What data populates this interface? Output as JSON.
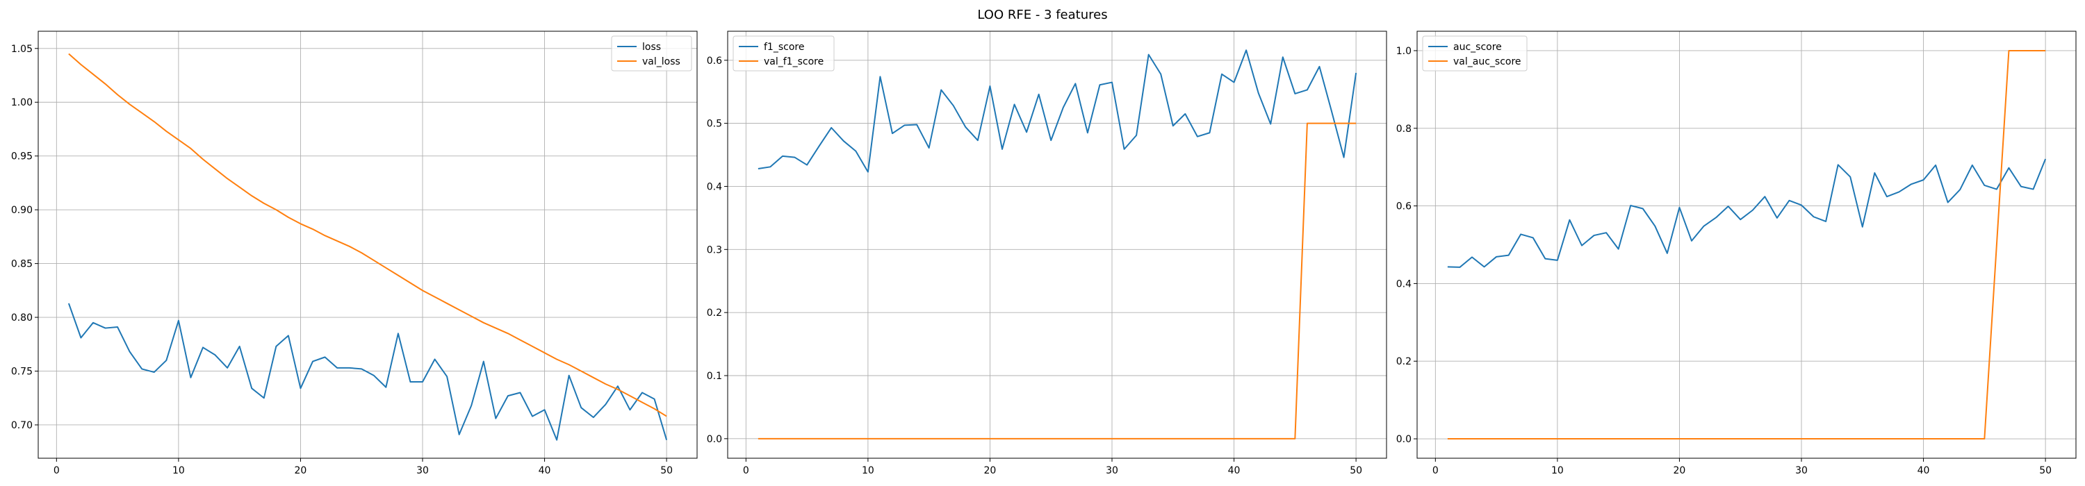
{
  "figure": {
    "title": "LOO RFE - 3 features"
  },
  "chart_data": [
    {
      "type": "line",
      "title": "",
      "xlabel": "",
      "ylabel": "",
      "xlim": [
        -1.5,
        52.5
      ],
      "ylim": [
        0.669,
        1.066
      ],
      "xticks": [
        0,
        10,
        20,
        30,
        40,
        50
      ],
      "yticks": [
        0.7,
        0.75,
        0.8,
        0.85,
        0.9,
        0.95,
        1.0,
        1.05
      ],
      "ytick_labels": [
        "0.70",
        "0.75",
        "0.80",
        "0.85",
        "0.90",
        "0.95",
        "1.00",
        "1.05"
      ],
      "grid": true,
      "legend": "top-right",
      "x": [
        1,
        2,
        3,
        4,
        5,
        6,
        7,
        8,
        9,
        10,
        11,
        12,
        13,
        14,
        15,
        16,
        17,
        18,
        19,
        20,
        21,
        22,
        23,
        24,
        25,
        26,
        27,
        28,
        29,
        30,
        31,
        32,
        33,
        34,
        35,
        36,
        37,
        38,
        39,
        40,
        41,
        42,
        43,
        44,
        45,
        46,
        47,
        48,
        49,
        50
      ],
      "series": [
        {
          "name": "loss",
          "color": "#1f77b4",
          "values": [
            0.813,
            0.781,
            0.795,
            0.79,
            0.791,
            0.768,
            0.752,
            0.749,
            0.76,
            0.797,
            0.744,
            0.772,
            0.765,
            0.753,
            0.773,
            0.734,
            0.725,
            0.773,
            0.783,
            0.734,
            0.759,
            0.763,
            0.753,
            0.753,
            0.752,
            0.746,
            0.735,
            0.785,
            0.74,
            0.74,
            0.761,
            0.745,
            0.691,
            0.718,
            0.759,
            0.706,
            0.727,
            0.73,
            0.708,
            0.714,
            0.686,
            0.746,
            0.716,
            0.707,
            0.719,
            0.736,
            0.714,
            0.73,
            0.724,
            0.686
          ]
        },
        {
          "name": "val_loss",
          "color": "#ff7f0e",
          "values": [
            1.045,
            1.035,
            1.026,
            1.017,
            1.007,
            0.998,
            0.99,
            0.982,
            0.973,
            0.965,
            0.957,
            0.947,
            0.938,
            0.929,
            0.921,
            0.913,
            0.906,
            0.9,
            0.893,
            0.887,
            0.882,
            0.876,
            0.871,
            0.866,
            0.86,
            0.853,
            0.846,
            0.839,
            0.832,
            0.825,
            0.819,
            0.813,
            0.807,
            0.801,
            0.795,
            0.79,
            0.785,
            0.779,
            0.773,
            0.767,
            0.761,
            0.756,
            0.75,
            0.744,
            0.738,
            0.733,
            0.727,
            0.721,
            0.715,
            0.708
          ]
        }
      ]
    },
    {
      "type": "line",
      "title": "",
      "xlabel": "",
      "ylabel": "",
      "xlim": [
        -1.5,
        52.5
      ],
      "ylim": [
        -0.031,
        0.646
      ],
      "xticks": [
        0,
        10,
        20,
        30,
        40,
        50
      ],
      "yticks": [
        0.0,
        0.1,
        0.2,
        0.3,
        0.4,
        0.5,
        0.6
      ],
      "ytick_labels": [
        "0.0",
        "0.1",
        "0.2",
        "0.3",
        "0.4",
        "0.5",
        "0.6"
      ],
      "grid": true,
      "legend": "top-left",
      "x": [
        1,
        2,
        3,
        4,
        5,
        6,
        7,
        8,
        9,
        10,
        11,
        12,
        13,
        14,
        15,
        16,
        17,
        18,
        19,
        20,
        21,
        22,
        23,
        24,
        25,
        26,
        27,
        28,
        29,
        30,
        31,
        32,
        33,
        34,
        35,
        36,
        37,
        38,
        39,
        40,
        41,
        42,
        43,
        44,
        45,
        46,
        47,
        48,
        49,
        50
      ],
      "series": [
        {
          "name": "f1_score",
          "color": "#1f77b4",
          "values": [
            0.428,
            0.431,
            0.448,
            0.446,
            0.434,
            0.464,
            0.493,
            0.472,
            0.456,
            0.423,
            0.574,
            0.484,
            0.497,
            0.498,
            0.461,
            0.553,
            0.528,
            0.494,
            0.473,
            0.559,
            0.459,
            0.53,
            0.486,
            0.546,
            0.473,
            0.525,
            0.563,
            0.485,
            0.561,
            0.565,
            0.459,
            0.481,
            0.609,
            0.578,
            0.496,
            0.515,
            0.479,
            0.485,
            0.578,
            0.565,
            0.616,
            0.548,
            0.499,
            0.605,
            0.547,
            0.553,
            0.59,
            0.519,
            0.446,
            0.58
          ]
        },
        {
          "name": "val_f1_score",
          "color": "#ff7f0e",
          "values": [
            0,
            0,
            0,
            0,
            0,
            0,
            0,
            0,
            0,
            0,
            0,
            0,
            0,
            0,
            0,
            0,
            0,
            0,
            0,
            0,
            0,
            0,
            0,
            0,
            0,
            0,
            0,
            0,
            0,
            0,
            0,
            0,
            0,
            0,
            0,
            0,
            0,
            0,
            0,
            0,
            0,
            0,
            0,
            0,
            0,
            0.5,
            0.5,
            0.5,
            0.5,
            0.5
          ]
        }
      ]
    },
    {
      "type": "line",
      "title": "",
      "xlabel": "",
      "ylabel": "",
      "xlim": [
        -1.5,
        52.5
      ],
      "ylim": [
        -0.05,
        1.05
      ],
      "xticks": [
        0,
        10,
        20,
        30,
        40,
        50
      ],
      "yticks": [
        0.0,
        0.2,
        0.4,
        0.6,
        0.8,
        1.0
      ],
      "ytick_labels": [
        "0.0",
        "0.2",
        "0.4",
        "0.6",
        "0.8",
        "1.0"
      ],
      "grid": true,
      "legend": "top-left",
      "x": [
        1,
        2,
        3,
        4,
        5,
        6,
        7,
        8,
        9,
        10,
        11,
        12,
        13,
        14,
        15,
        16,
        17,
        18,
        19,
        20,
        21,
        22,
        23,
        24,
        25,
        26,
        27,
        28,
        29,
        30,
        31,
        32,
        33,
        34,
        35,
        36,
        37,
        38,
        39,
        40,
        41,
        42,
        43,
        44,
        45,
        46,
        47,
        48,
        49,
        50
      ],
      "series": [
        {
          "name": "auc_score",
          "color": "#1f77b4",
          "values": [
            0.443,
            0.442,
            0.468,
            0.443,
            0.469,
            0.473,
            0.527,
            0.518,
            0.464,
            0.46,
            0.564,
            0.498,
            0.524,
            0.531,
            0.489,
            0.601,
            0.593,
            0.548,
            0.478,
            0.596,
            0.51,
            0.548,
            0.57,
            0.599,
            0.565,
            0.589,
            0.624,
            0.569,
            0.614,
            0.602,
            0.572,
            0.56,
            0.706,
            0.675,
            0.546,
            0.685,
            0.624,
            0.636,
            0.656,
            0.667,
            0.705,
            0.609,
            0.642,
            0.705,
            0.653,
            0.643,
            0.698,
            0.65,
            0.643,
            0.721
          ]
        },
        {
          "name": "val_auc_score",
          "color": "#ff7f0e",
          "values": [
            0,
            0,
            0,
            0,
            0,
            0,
            0,
            0,
            0,
            0,
            0,
            0,
            0,
            0,
            0,
            0,
            0,
            0,
            0,
            0,
            0,
            0,
            0,
            0,
            0,
            0,
            0,
            0,
            0,
            0,
            0,
            0,
            0,
            0,
            0,
            0,
            0,
            0,
            0,
            0,
            0,
            0,
            0,
            0,
            0,
            0.5,
            1.0,
            1.0,
            1.0,
            1.0
          ]
        }
      ]
    }
  ]
}
